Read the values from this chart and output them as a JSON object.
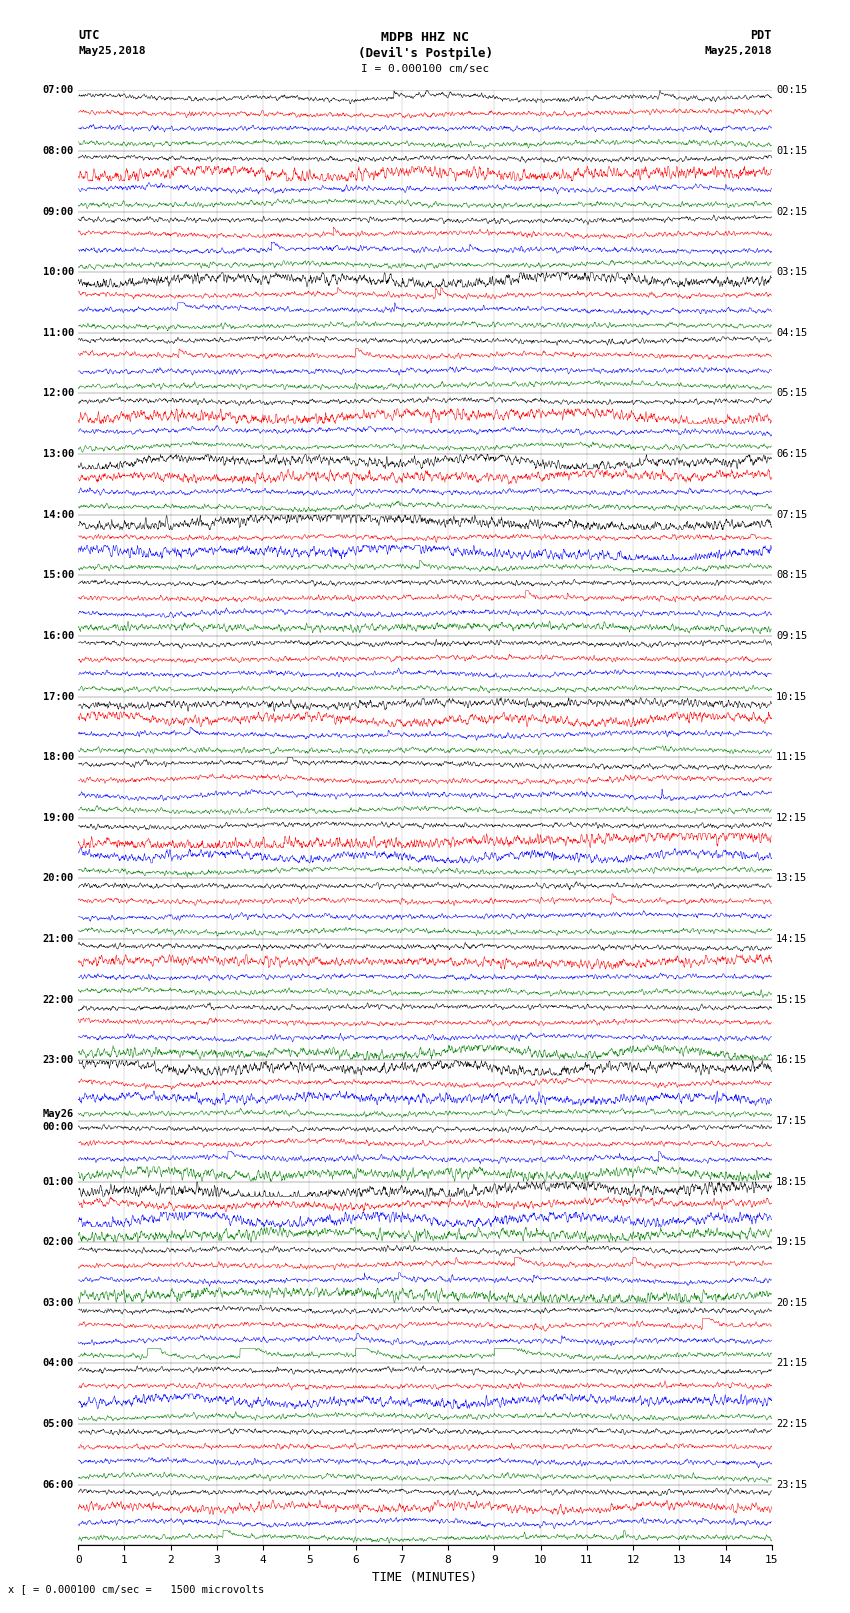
{
  "title_line1": "MDPB HHZ NC",
  "title_line2": "(Devil's Postpile)",
  "scale_label": "I = 0.000100 cm/sec",
  "label_utc": "UTC",
  "label_date_left": "May25,2018",
  "label_pdt": "PDT",
  "label_date_right": "May25,2018",
  "xlabel": "TIME (MINUTES)",
  "footnote": "x [ = 0.000100 cm/sec =   1500 microvolts",
  "bg_color": "#ffffff",
  "line_colors": [
    "black",
    "red",
    "blue",
    "green"
  ],
  "num_hours": 24,
  "minutes": 15,
  "fig_width": 8.5,
  "fig_height": 16.13,
  "dpi": 100,
  "left_time_labels": [
    "07:00",
    "08:00",
    "09:00",
    "10:00",
    "11:00",
    "12:00",
    "13:00",
    "14:00",
    "15:00",
    "16:00",
    "17:00",
    "18:00",
    "19:00",
    "20:00",
    "21:00",
    "22:00",
    "23:00",
    "May26\n00:00",
    "01:00",
    "02:00",
    "03:00",
    "04:00",
    "05:00",
    "06:00"
  ],
  "right_time_labels": [
    "00:15",
    "01:15",
    "02:15",
    "03:15",
    "04:15",
    "05:15",
    "06:15",
    "07:15",
    "08:15",
    "09:15",
    "10:15",
    "11:15",
    "12:15",
    "13:15",
    "14:15",
    "15:15",
    "16:15",
    "17:15",
    "18:15",
    "19:15",
    "20:15",
    "21:15",
    "22:15",
    "23:15"
  ]
}
